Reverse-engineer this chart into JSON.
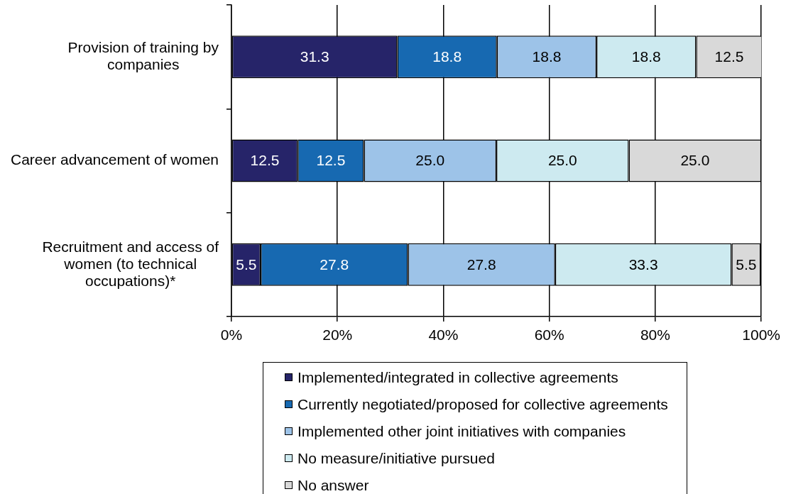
{
  "chart_data": {
    "type": "bar",
    "orientation": "horizontal",
    "stacked": true,
    "categories": [
      "Provision of training by companies",
      "Career advancement of women",
      "Recruitment and access of women (to technical occupations)*"
    ],
    "series": [
      {
        "name": "Implemented/integrated in collective agreements",
        "color": "#262469",
        "values": [
          31.3,
          12.5,
          5.5
        ],
        "value_labels": [
          "31.3",
          "12.5",
          "5.5"
        ]
      },
      {
        "name": "Currently negotiated/proposed for collective agreements",
        "color": "#1769b1",
        "values": [
          18.8,
          12.5,
          27.8
        ],
        "value_labels": [
          "18.8",
          "12.5",
          "27.8"
        ]
      },
      {
        "name": "Implemented other joint initiatives with companies",
        "color": "#9dc3e8",
        "values": [
          18.8,
          25.0,
          27.8
        ],
        "value_labels": [
          "18.8",
          "25.0",
          "27.8"
        ]
      },
      {
        "name": "No measure/initiative pursued",
        "color": "#cdeaf0",
        "values": [
          18.8,
          25.0,
          33.3
        ],
        "value_labels": [
          "18.8",
          "25.0",
          "33.3"
        ]
      },
      {
        "name": "No answer",
        "color": "#d9d9d9",
        "values": [
          12.5,
          25.0,
          5.5
        ],
        "value_labels": [
          "12.5",
          "25.0",
          "5.5"
        ]
      }
    ],
    "xlim": [
      0,
      100
    ],
    "xticks": [
      {
        "value": 0,
        "label": "0%"
      },
      {
        "value": 20,
        "label": "20%"
      },
      {
        "value": 40,
        "label": "40%"
      },
      {
        "value": 60,
        "label": "60%"
      },
      {
        "value": 80,
        "label": "80%"
      },
      {
        "value": 100,
        "label": "100%"
      }
    ],
    "grid": "x",
    "legend": "bottom"
  }
}
